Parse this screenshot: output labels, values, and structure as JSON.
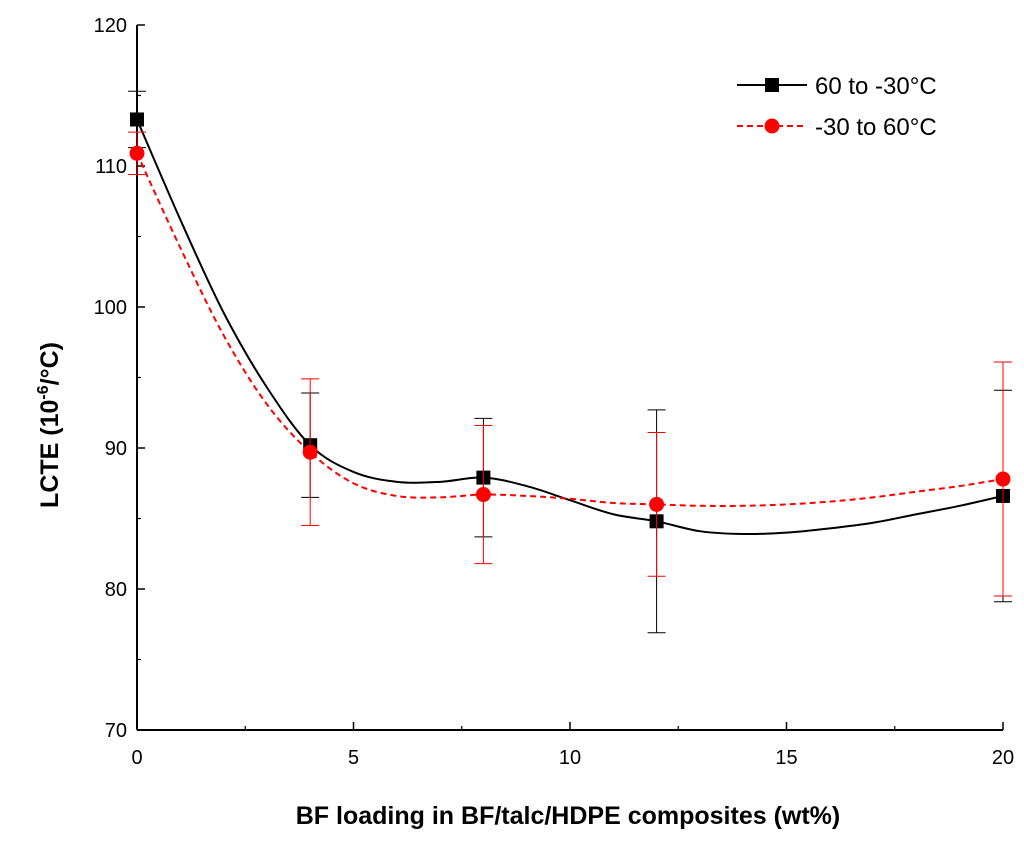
{
  "chart_data": {
    "type": "line",
    "title": "",
    "xlabel": "BF loading in BF/talc/HDPE composites (wt%)",
    "ylabel": "LCTE (10",
    "ylabel_sup": "-6",
    "ylabel_suffix": "/°C)",
    "xlim": [
      0,
      20
    ],
    "ylim": [
      70,
      120
    ],
    "x_ticks": [
      0,
      5,
      10,
      15,
      20
    ],
    "y_ticks": [
      70,
      80,
      90,
      100,
      110,
      120
    ],
    "legend_position": "top-right",
    "series": [
      {
        "name": "60 to -30°C",
        "color": "#000000",
        "marker": "square",
        "line_style": "solid",
        "x": [
          0,
          4,
          8,
          12,
          20
        ],
        "y": [
          113.3,
          90.2,
          87.9,
          84.8,
          86.6
        ],
        "err": [
          2.0,
          3.7,
          4.2,
          7.9,
          7.5
        ],
        "curve": [
          [
            0,
            113.3
          ],
          [
            1,
            106.2
          ],
          [
            2,
            99.6
          ],
          [
            3,
            94.3
          ],
          [
            4,
            90.2
          ],
          [
            5,
            88.3
          ],
          [
            6,
            87.6
          ],
          [
            7,
            87.6
          ],
          [
            8,
            87.9
          ],
          [
            9,
            87.3
          ],
          [
            10,
            86.3
          ],
          [
            11,
            85.3
          ],
          [
            12,
            84.8
          ],
          [
            13,
            84.1
          ],
          [
            14,
            83.9
          ],
          [
            15,
            84.0
          ],
          [
            16,
            84.3
          ],
          [
            17,
            84.7
          ],
          [
            18,
            85.3
          ],
          [
            19,
            85.9
          ],
          [
            20,
            86.6
          ]
        ]
      },
      {
        "name": "-30 to 60°C",
        "color": "#ff0000",
        "marker": "circle",
        "line_style": "dashed",
        "x": [
          0,
          4,
          8,
          12,
          20
        ],
        "y": [
          110.9,
          89.7,
          86.7,
          86.0,
          87.8
        ],
        "err": [
          1.5,
          5.2,
          4.9,
          5.1,
          8.3
        ],
        "curve": [
          [
            0,
            110.9
          ],
          [
            1,
            104.2
          ],
          [
            2,
            98.0
          ],
          [
            3,
            93.1
          ],
          [
            4,
            89.7
          ],
          [
            5,
            87.5
          ],
          [
            6,
            86.6
          ],
          [
            7,
            86.5
          ],
          [
            8,
            86.7
          ],
          [
            9,
            86.6
          ],
          [
            10,
            86.4
          ],
          [
            11,
            86.1
          ],
          [
            12,
            86.0
          ],
          [
            13,
            85.9
          ],
          [
            14,
            85.9
          ],
          [
            15,
            86.0
          ],
          [
            16,
            86.2
          ],
          [
            17,
            86.5
          ],
          [
            18,
            86.9
          ],
          [
            19,
            87.3
          ],
          [
            20,
            87.8
          ]
        ]
      }
    ]
  }
}
